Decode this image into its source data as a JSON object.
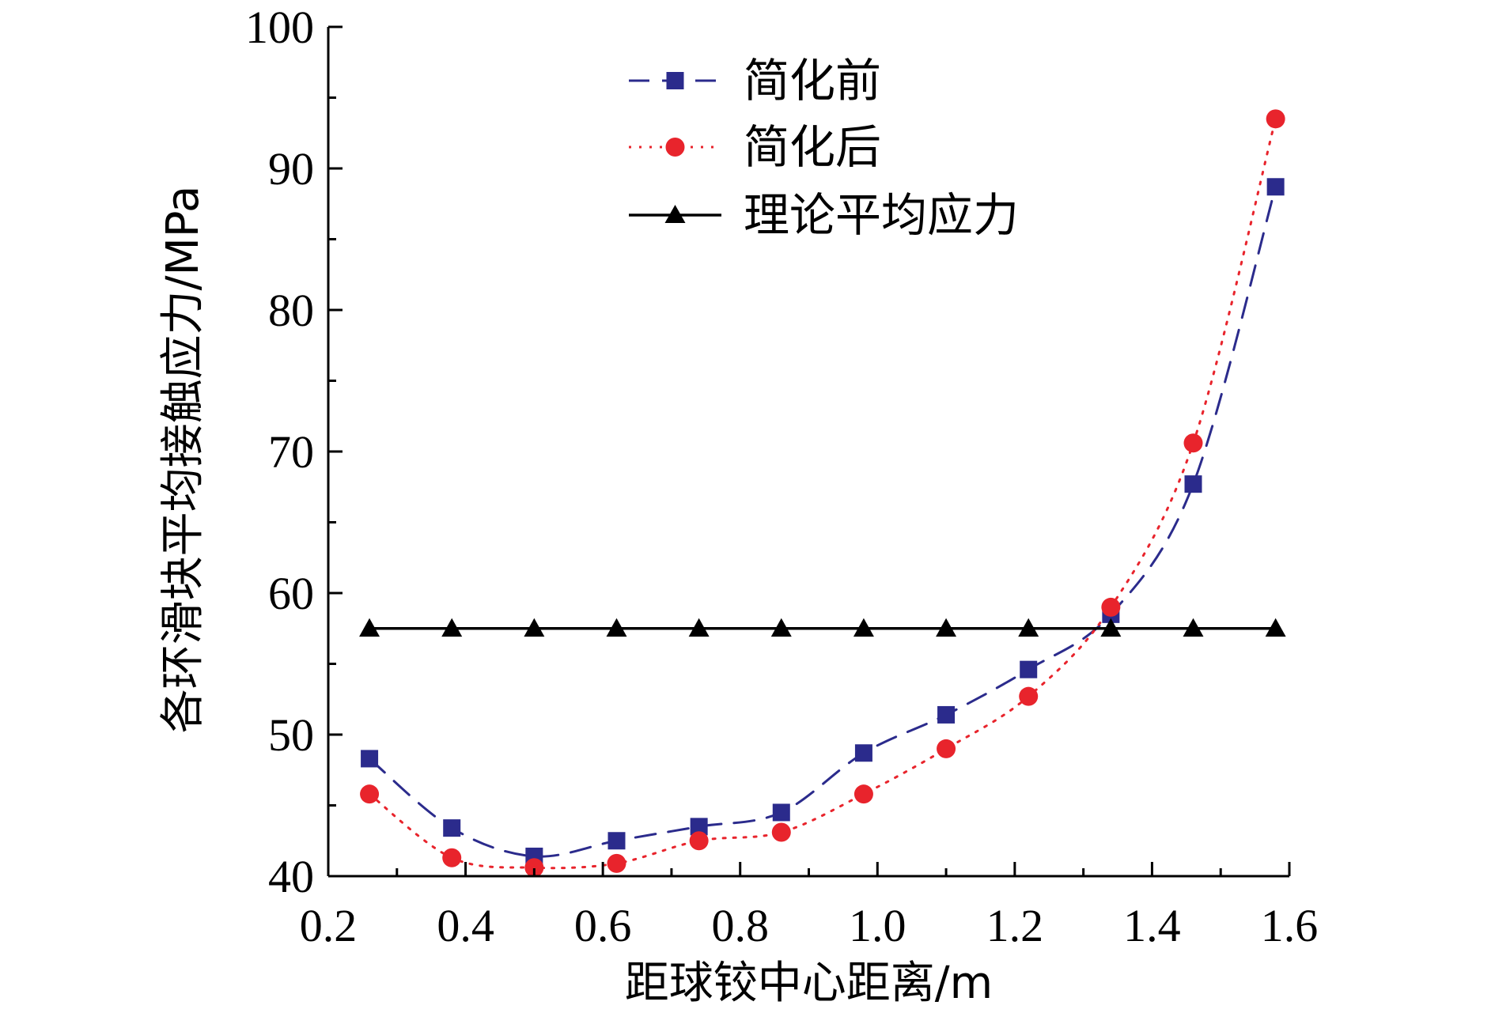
{
  "chart_data": {
    "type": "line",
    "xlabel": "距球铰中心距离/m",
    "ylabel": "各环滑块平均接触应力/MPa",
    "xlim": [
      0.2,
      1.6
    ],
    "ylim": [
      40,
      100
    ],
    "xticks": [
      0.2,
      0.4,
      0.6,
      0.8,
      1.0,
      1.2,
      1.4,
      1.6
    ],
    "xtick_labels": [
      "0.2",
      "0.4",
      "0.6",
      "0.8",
      "1.0",
      "1.2",
      "1.4",
      "1.6"
    ],
    "yticks": [
      40,
      50,
      60,
      70,
      80,
      90,
      100
    ],
    "ytick_labels": [
      "40",
      "50",
      "60",
      "70",
      "80",
      "90",
      "100"
    ],
    "legend_position": "top-center",
    "x": [
      0.26,
      0.38,
      0.5,
      0.62,
      0.74,
      0.86,
      0.98,
      1.1,
      1.22,
      1.34,
      1.46,
      1.58
    ],
    "series": [
      {
        "name": "简化前",
        "color": "#2b2b8c",
        "marker": "square",
        "line_style": "dashed",
        "values": [
          48.3,
          43.4,
          41.4,
          42.5,
          43.5,
          44.5,
          48.7,
          51.4,
          54.6,
          58.5,
          67.7,
          88.7
        ]
      },
      {
        "name": "简化后",
        "color": "#e8242c",
        "marker": "circle",
        "line_style": "dotted",
        "values": [
          45.8,
          41.3,
          40.6,
          40.9,
          42.5,
          43.1,
          45.8,
          49.0,
          52.7,
          59.0,
          70.6,
          93.5
        ]
      },
      {
        "name": "理论平均应力",
        "color": "#000000",
        "marker": "triangle",
        "line_style": "solid",
        "values": [
          57.5,
          57.5,
          57.5,
          57.5,
          57.5,
          57.5,
          57.5,
          57.5,
          57.5,
          57.5,
          57.5,
          57.5
        ]
      }
    ]
  }
}
